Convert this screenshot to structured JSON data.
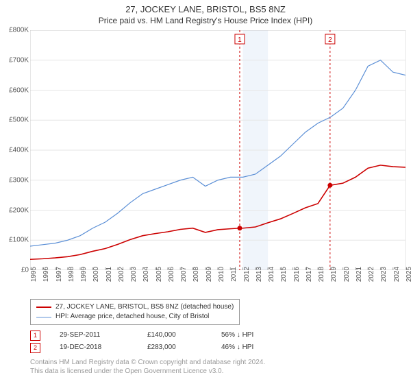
{
  "title": "27, JOCKEY LANE, BRISTOL, BS5 8NZ",
  "subtitle": "Price paid vs. HM Land Registry's House Price Index (HPI)",
  "chart": {
    "type": "line",
    "background_color": "#ffffff",
    "plot_border_color": "#cccccc",
    "grid_color": "#e6e6e6",
    "shaded_band": {
      "x_start": 2012,
      "x_end": 2014,
      "color": "#f0f5fb"
    },
    "xlim": [
      1995,
      2025
    ],
    "ylim": [
      0,
      800000
    ],
    "ytick_step": 100000,
    "ytick_format": "£{v}K",
    "yticks": [
      0,
      100,
      200,
      300,
      400,
      500,
      600,
      700,
      800
    ],
    "xticks": [
      1995,
      1996,
      1997,
      1998,
      1999,
      2000,
      2001,
      2002,
      2003,
      2004,
      2005,
      2006,
      2007,
      2008,
      2009,
      2010,
      2011,
      2012,
      2013,
      2014,
      2015,
      2016,
      2017,
      2018,
      2019,
      2020,
      2021,
      2022,
      2023,
      2024,
      2025
    ],
    "label_fontsize": 10,
    "label_color": "#555555",
    "series": [
      {
        "name": "hpi",
        "legend": "HPI: Average price, detached house, City of Bristol",
        "color": "#5b8fd6",
        "line_width": 1.2,
        "markers": false,
        "data": [
          [
            1995,
            80000
          ],
          [
            1996,
            85000
          ],
          [
            1997,
            90000
          ],
          [
            1998,
            100000
          ],
          [
            1999,
            115000
          ],
          [
            2000,
            140000
          ],
          [
            2001,
            160000
          ],
          [
            2002,
            190000
          ],
          [
            2003,
            225000
          ],
          [
            2004,
            255000
          ],
          [
            2005,
            270000
          ],
          [
            2006,
            285000
          ],
          [
            2007,
            300000
          ],
          [
            2008,
            310000
          ],
          [
            2009,
            280000
          ],
          [
            2010,
            300000
          ],
          [
            2011,
            310000
          ],
          [
            2012,
            310000
          ],
          [
            2013,
            320000
          ],
          [
            2014,
            350000
          ],
          [
            2015,
            380000
          ],
          [
            2016,
            420000
          ],
          [
            2017,
            460000
          ],
          [
            2018,
            490000
          ],
          [
            2019,
            510000
          ],
          [
            2020,
            540000
          ],
          [
            2021,
            600000
          ],
          [
            2022,
            680000
          ],
          [
            2023,
            700000
          ],
          [
            2024,
            660000
          ],
          [
            2025,
            650000
          ]
        ]
      },
      {
        "name": "property",
        "legend": "27, JOCKEY LANE, BRISTOL, BS5 8NZ (detached house)",
        "color": "#cc0000",
        "line_width": 1.6,
        "markers": true,
        "marker_points": [
          [
            2011.75,
            140000
          ],
          [
            2018.97,
            283000
          ]
        ],
        "data": [
          [
            1995,
            36000
          ],
          [
            1996,
            38000
          ],
          [
            1997,
            41000
          ],
          [
            1998,
            45000
          ],
          [
            1999,
            52000
          ],
          [
            2000,
            63000
          ],
          [
            2001,
            72000
          ],
          [
            2002,
            86000
          ],
          [
            2003,
            102000
          ],
          [
            2004,
            115000
          ],
          [
            2005,
            122000
          ],
          [
            2006,
            128000
          ],
          [
            2007,
            136000
          ],
          [
            2008,
            140000
          ],
          [
            2009,
            126000
          ],
          [
            2010,
            135000
          ],
          [
            2011,
            138000
          ],
          [
            2011.75,
            140000
          ],
          [
            2012,
            140000
          ],
          [
            2013,
            144000
          ],
          [
            2014,
            158000
          ],
          [
            2015,
            171000
          ],
          [
            2016,
            189000
          ],
          [
            2017,
            208000
          ],
          [
            2018,
            222000
          ],
          [
            2018.97,
            283000
          ],
          [
            2019,
            283000
          ],
          [
            2020,
            290000
          ],
          [
            2021,
            310000
          ],
          [
            2022,
            340000
          ],
          [
            2023,
            350000
          ],
          [
            2024,
            345000
          ],
          [
            2025,
            343000
          ]
        ]
      }
    ],
    "event_lines": [
      {
        "label": "1",
        "x": 2011.75,
        "color": "#cc0000",
        "dash": "3,3"
      },
      {
        "label": "2",
        "x": 2018.97,
        "color": "#cc0000",
        "dash": "3,3"
      }
    ]
  },
  "legend": {
    "items": [
      {
        "color": "#cc0000",
        "width": 2,
        "label": "27, JOCKEY LANE, BRISTOL, BS5 8NZ (detached house)"
      },
      {
        "color": "#5b8fd6",
        "width": 1.2,
        "label": "HPI: Average price, detached house, City of Bristol"
      }
    ]
  },
  "events": [
    {
      "marker": "1",
      "date": "29-SEP-2011",
      "price": "£140,000",
      "pct": "56% ↓ HPI"
    },
    {
      "marker": "2",
      "date": "19-DEC-2018",
      "price": "£283,000",
      "pct": "46% ↓ HPI"
    }
  ],
  "credit_line1": "Contains HM Land Registry data © Crown copyright and database right 2024.",
  "credit_line2": "This data is licensed under the Open Government Licence v3.0."
}
